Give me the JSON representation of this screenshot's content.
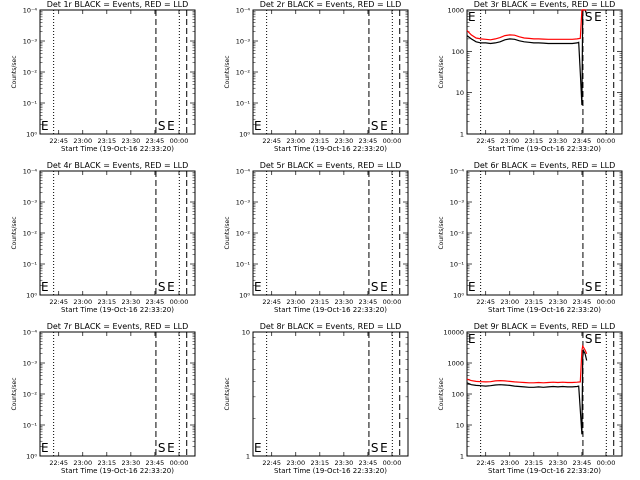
{
  "style": {
    "events_color": "#000000",
    "lld_color": "#ff0000",
    "background": "#ffffff",
    "y_scale": "log"
  },
  "chart_data": [
    {
      "type": "line",
      "title": "Det 1r BLACK = Events, RED = LLD",
      "ylabel": "Counts/sec",
      "xlabel": "Start Time (19-Oct-16 22:33:20)",
      "x_ticks": [
        "22:45",
        "23:00",
        "23:15",
        "23:30",
        "23:45",
        "00:00"
      ],
      "y_ticks": [
        "10⁰",
        "10⁻¹",
        "10⁻²",
        "10⁻³",
        "10⁻⁴"
      ],
      "markers": [
        "E",
        "S",
        "E"
      ],
      "series": []
    },
    {
      "type": "line",
      "title": "Det 2r BLACK = Events, RED = LLD",
      "ylabel": "Counts/sec",
      "xlabel": "Start Time (19-Oct-16 22:33:20)",
      "x_ticks": [
        "22:45",
        "23:00",
        "23:15",
        "23:30",
        "23:45",
        "00:00"
      ],
      "y_ticks": [
        "10⁰",
        "10⁻¹",
        "10⁻²",
        "10⁻³",
        "10⁻⁴"
      ],
      "markers": [
        "E",
        "S",
        "E"
      ],
      "series": []
    },
    {
      "type": "line",
      "title": "Det 3r BLACK = Events, RED = LLD",
      "ylabel": "Counts/sec",
      "xlabel": "Start Time (19-Oct-16 22:33:20)",
      "x_ticks": [
        "22:45",
        "23:00",
        "23:15",
        "23:30",
        "23:45",
        "00:00"
      ],
      "y_ticks": [
        "1",
        "10",
        "100",
        "1000"
      ],
      "markers": [
        "E",
        "S",
        "E"
      ],
      "series": [
        {
          "role": "events",
          "x": [
            "22:33:20",
            "22:36",
            "22:39",
            "22:42",
            "22:45",
            "22:48",
            "22:51",
            "22:54",
            "22:57",
            "23:00",
            "23:03",
            "23:06",
            "23:09",
            "23:12",
            "23:15",
            "23:18",
            "23:21",
            "23:24",
            "23:27",
            "23:30",
            "23:33",
            "23:36",
            "23:39",
            "23:42",
            "23:43",
            "23:44",
            "23:45",
            "23:45:30",
            "23:46",
            "23:47",
            "23:48"
          ],
          "y": [
            240,
            200,
            170,
            160,
            160,
            155,
            160,
            170,
            190,
            200,
            195,
            180,
            170,
            165,
            160,
            160,
            158,
            155,
            155,
            155,
            155,
            155,
            155,
            160,
            165,
            30,
            5,
            1000,
            1200,
            1100,
            800
          ]
        },
        {
          "role": "lld",
          "x": [
            "22:33:20",
            "22:36",
            "22:39",
            "22:42",
            "22:45",
            "22:48",
            "22:51",
            "22:54",
            "22:57",
            "23:00",
            "23:03",
            "23:06",
            "23:09",
            "23:12",
            "23:15",
            "23:18",
            "23:21",
            "23:24",
            "23:27",
            "23:30",
            "23:33",
            "23:36",
            "23:39",
            "23:42",
            "23:44",
            "23:45",
            "23:45:30",
            "23:46",
            "23:47",
            "23:48"
          ],
          "y": [
            320,
            250,
            210,
            200,
            195,
            190,
            200,
            215,
            240,
            250,
            245,
            225,
            210,
            205,
            200,
            200,
            198,
            195,
            195,
            195,
            195,
            195,
            195,
            200,
            205,
            1200,
            1500,
            1400,
            1300,
            1000
          ]
        }
      ]
    },
    {
      "type": "line",
      "title": "Det 4r BLACK = Events, RED = LLD",
      "ylabel": "Counts/sec",
      "xlabel": "Start Time (19-Oct-16 22:33:20)",
      "x_ticks": [
        "22:45",
        "23:00",
        "23:15",
        "23:30",
        "23:45",
        "00:00"
      ],
      "y_ticks": [
        "10⁰",
        "10⁻¹",
        "10⁻²",
        "10⁻³",
        "10⁻⁴"
      ],
      "markers": [
        "E",
        "S",
        "E"
      ],
      "series": []
    },
    {
      "type": "line",
      "title": "Det 5r BLACK = Events, RED = LLD",
      "ylabel": "Counts/sec",
      "xlabel": "Start Time (19-Oct-16 22:33:20)",
      "x_ticks": [
        "22:45",
        "23:00",
        "23:15",
        "23:30",
        "23:45",
        "00:00"
      ],
      "y_ticks": [
        "10⁰",
        "10⁻¹",
        "10⁻²",
        "10⁻³",
        "10⁻⁴"
      ],
      "markers": [
        "E",
        "S",
        "E"
      ],
      "series": []
    },
    {
      "type": "line",
      "title": "Det 6r BLACK = Events, RED = LLD",
      "ylabel": "Counts/sec",
      "xlabel": "Start Time (19-Oct-16 22:33:20)",
      "x_ticks": [
        "22:45",
        "23:00",
        "23:15",
        "23:30",
        "23:45",
        "00:00"
      ],
      "y_ticks": [
        "10⁰",
        "10⁻¹",
        "10⁻²",
        "10⁻³",
        "10⁻⁴"
      ],
      "markers": [
        "E",
        "S",
        "E"
      ],
      "series": []
    },
    {
      "type": "line",
      "title": "Det 7r BLACK = Events, RED = LLD",
      "ylabel": "Counts/sec",
      "xlabel": "Start Time (19-Oct-16 22:33:20)",
      "x_ticks": [
        "22:45",
        "23:00",
        "23:15",
        "23:30",
        "23:45",
        "00:00"
      ],
      "y_ticks": [
        "10⁰",
        "10⁻¹",
        "10⁻²",
        "10⁻³",
        "10⁻⁴"
      ],
      "markers": [
        "E",
        "S",
        "E"
      ],
      "series": []
    },
    {
      "type": "line",
      "title": "Det 8r BLACK = Events, RED = LLD",
      "ylabel": "Counts/sec",
      "xlabel": "Start Time (19-Oct-16 22:33:20)",
      "x_ticks": [
        "22:45",
        "23:00",
        "23:15",
        "23:30",
        "23:45",
        "00:00"
      ],
      "y_ticks": [
        "1",
        "10"
      ],
      "markers": [
        "E",
        "S",
        "E"
      ],
      "series": []
    },
    {
      "type": "line",
      "title": "Det 9r BLACK = Events, RED = LLD",
      "ylabel": "Counts/sec",
      "xlabel": "Start Time (19-Oct-16 22:33:20)",
      "x_ticks": [
        "22:45",
        "23:00",
        "23:15",
        "23:30",
        "23:45",
        "00:00"
      ],
      "y_ticks": [
        "1",
        "10",
        "100",
        "1000",
        "10000"
      ],
      "markers": [
        "E",
        "S",
        "E"
      ],
      "series": [
        {
          "role": "events",
          "x": [
            "22:33:20",
            "22:36",
            "22:39",
            "22:42",
            "22:45",
            "22:48",
            "22:51",
            "22:54",
            "22:57",
            "23:00",
            "23:03",
            "23:06",
            "23:09",
            "23:12",
            "23:15",
            "23:18",
            "23:21",
            "23:24",
            "23:27",
            "23:30",
            "23:33",
            "23:36",
            "23:39",
            "23:42",
            "23:43",
            "23:44",
            "23:45",
            "23:45:30",
            "23:46",
            "23:47",
            "23:48"
          ],
          "y": [
            230,
            200,
            190,
            185,
            180,
            185,
            195,
            200,
            195,
            190,
            180,
            175,
            170,
            165,
            165,
            170,
            165,
            170,
            175,
            170,
            175,
            170,
            170,
            175,
            180,
            30,
            5,
            1500,
            2500,
            2000,
            1200
          ]
        },
        {
          "role": "lld",
          "x": [
            "22:33:20",
            "22:36",
            "22:39",
            "22:42",
            "22:45",
            "22:48",
            "22:51",
            "22:54",
            "22:57",
            "23:00",
            "23:03",
            "23:06",
            "23:09",
            "23:12",
            "23:15",
            "23:18",
            "23:21",
            "23:24",
            "23:27",
            "23:30",
            "23:33",
            "23:36",
            "23:39",
            "23:42",
            "23:44",
            "23:45",
            "23:45:30",
            "23:46",
            "23:47",
            "23:48"
          ],
          "y": [
            300,
            270,
            255,
            250,
            245,
            250,
            265,
            270,
            265,
            255,
            245,
            240,
            235,
            230,
            230,
            235,
            230,
            235,
            240,
            235,
            240,
            235,
            235,
            240,
            245,
            2500,
            3500,
            3200,
            2600,
            2000
          ]
        }
      ]
    }
  ]
}
